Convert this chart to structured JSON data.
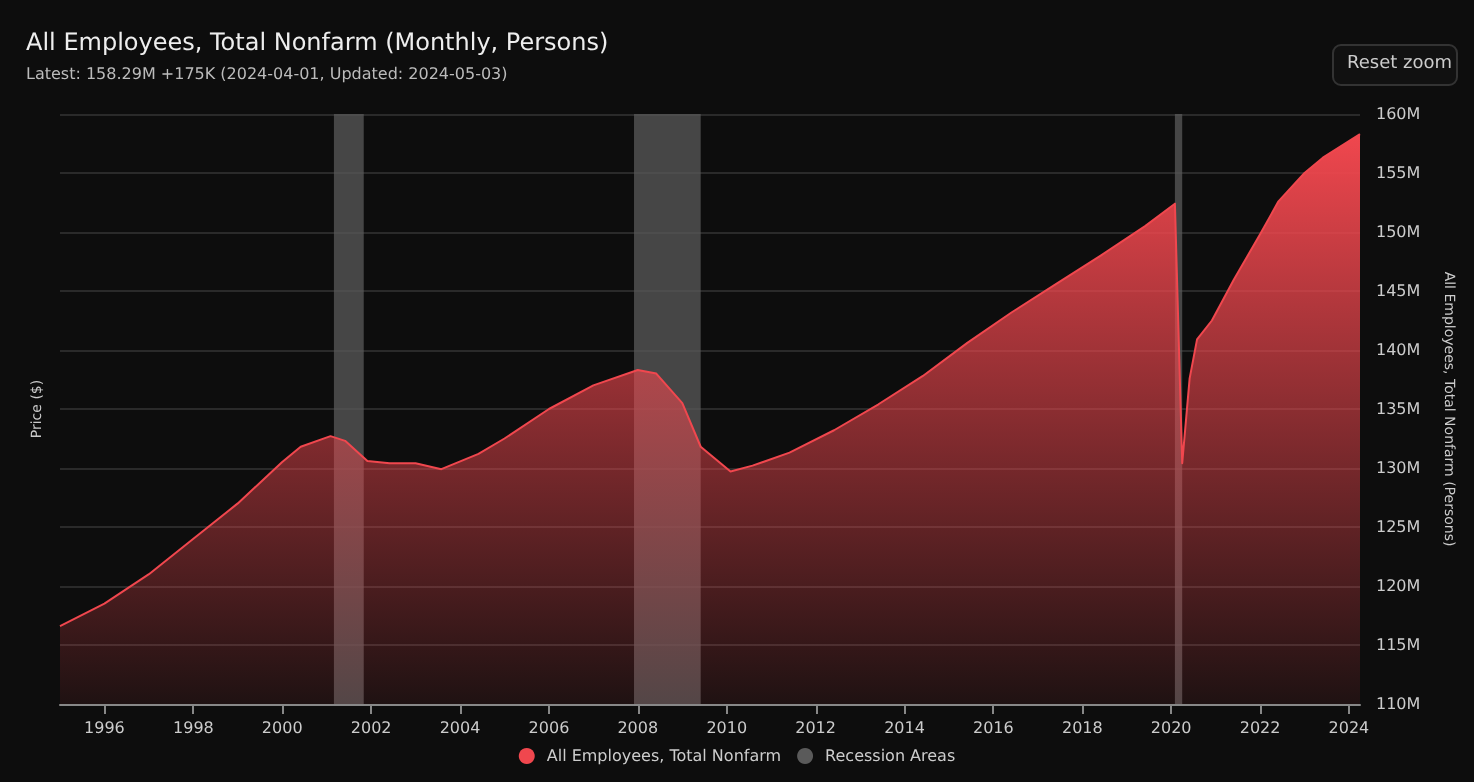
{
  "chart_data": {
    "type": "area",
    "title": "All Employees, Total Nonfarm (Monthly, Persons)",
    "subtitle": "Latest: 158.29M +175K (2024-04-01, Updated: 2024-05-03)",
    "ylabel": "Price ($)",
    "y2label": "All Employees, Total Nonfarm (Persons)",
    "annotations": [
      "Reset zoom"
    ],
    "x": [
      "1995-01",
      "1996-01",
      "1997-01",
      "1998-01",
      "1999-01",
      "2000-01",
      "2000-06",
      "2001-02",
      "2001-06",
      "2001-12",
      "2002-06",
      "2003-01",
      "2003-08",
      "2004-06",
      "2005-01",
      "2006-01",
      "2007-01",
      "2008-01",
      "2008-06",
      "2009-01",
      "2009-06",
      "2010-02",
      "2010-08",
      "2011-06",
      "2012-06",
      "2013-06",
      "2014-06",
      "2015-06",
      "2016-06",
      "2017-06",
      "2018-06",
      "2019-06",
      "2020-02",
      "2020-04",
      "2020-06",
      "2020-08",
      "2020-12",
      "2021-06",
      "2022-01",
      "2022-06",
      "2023-01",
      "2023-06",
      "2024-04"
    ],
    "series": [
      {
        "name": "All Employees, Total Nonfarm",
        "color": "#f0474e",
        "axis": "y2",
        "values": [
          116.6,
          118.5,
          121.0,
          124.0,
          127.0,
          130.5,
          131.8,
          132.7,
          132.3,
          130.6,
          130.4,
          130.4,
          129.9,
          131.2,
          132.5,
          135.0,
          137.0,
          138.3,
          138.0,
          135.5,
          131.8,
          129.7,
          130.2,
          131.3,
          133.2,
          135.4,
          137.8,
          140.6,
          143.2,
          145.6,
          148.0,
          150.5,
          152.4,
          130.4,
          137.6,
          140.9,
          142.5,
          146.0,
          149.8,
          152.6,
          155.0,
          156.3,
          158.3
        ]
      }
    ],
    "y2lim": [
      110,
      160
    ],
    "y2ticks": [
      {
        "value": 110,
        "label": "110M"
      },
      {
        "value": 115,
        "label": "115M"
      },
      {
        "value": 120,
        "label": "120M"
      },
      {
        "value": 125,
        "label": "125M"
      },
      {
        "value": 130,
        "label": "130M"
      },
      {
        "value": 135,
        "label": "135M"
      },
      {
        "value": 140,
        "label": "140M"
      },
      {
        "value": 145,
        "label": "145M"
      },
      {
        "value": 150,
        "label": "150M"
      },
      {
        "value": 155,
        "label": "155M"
      },
      {
        "value": 160,
        "label": "160M"
      }
    ],
    "xlim": [
      "1995-01",
      "2024-04"
    ],
    "xticks": [
      "1996",
      "1998",
      "2000",
      "2002",
      "2004",
      "2006",
      "2008",
      "2010",
      "2012",
      "2014",
      "2016",
      "2018",
      "2020",
      "2022",
      "2024"
    ],
    "bands": [
      {
        "axis": "x",
        "from": "2001-03",
        "to": "2001-11",
        "label": "Recession Areas",
        "color": "#5a5a5a"
      },
      {
        "axis": "x",
        "from": "2007-12",
        "to": "2009-06",
        "color": "#5a5a5a"
      },
      {
        "axis": "x",
        "from": "2020-02",
        "to": "2020-04",
        "color": "#5a5a5a"
      }
    ],
    "grid": "y",
    "legend": "bottom",
    "marker": "none",
    "line_style": "solid"
  }
}
